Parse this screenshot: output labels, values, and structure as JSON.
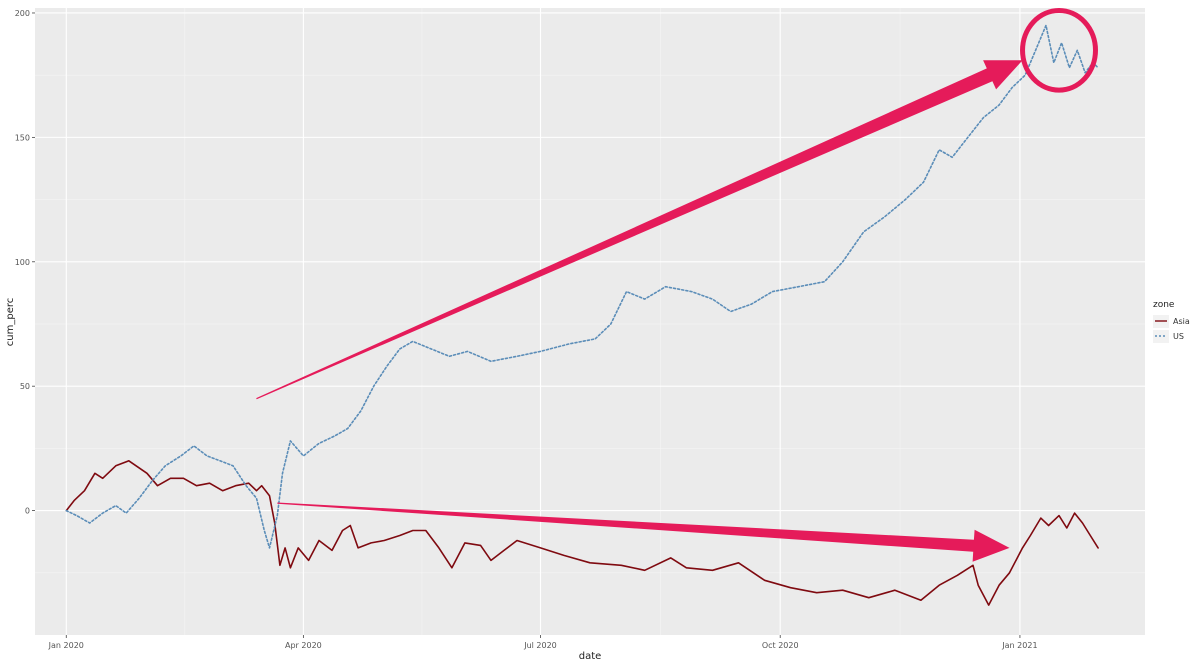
{
  "chart_data": {
    "type": "line",
    "xlabel": "date",
    "ylabel": "cum_perc",
    "legend": {
      "title": "zone",
      "position": "right"
    },
    "x_ticks": [
      {
        "label": "Jan 2020",
        "date": "2020-01-01"
      },
      {
        "label": "Apr 2020",
        "date": "2020-04-01"
      },
      {
        "label": "Jul 2020",
        "date": "2020-07-01"
      },
      {
        "label": "Oct 2020",
        "date": "2020-10-01"
      },
      {
        "label": "Jan 2021",
        "date": "2021-01-01"
      }
    ],
    "y_ticks": [
      0,
      50,
      100,
      150,
      200
    ],
    "xlim": [
      "2019-12-20",
      "2021-02-18"
    ],
    "ylim": [
      -50,
      202
    ],
    "grid": true,
    "series": [
      {
        "name": "Asia",
        "color": "#7f0a10",
        "linestyle": "solid",
        "points": [
          [
            "2020-01-01",
            0
          ],
          [
            "2020-01-04",
            4
          ],
          [
            "2020-01-08",
            8
          ],
          [
            "2020-01-12",
            15
          ],
          [
            "2020-01-15",
            13
          ],
          [
            "2020-01-20",
            18
          ],
          [
            "2020-01-25",
            20
          ],
          [
            "2020-02-01",
            15
          ],
          [
            "2020-02-05",
            10
          ],
          [
            "2020-02-10",
            13
          ],
          [
            "2020-02-15",
            13
          ],
          [
            "2020-02-20",
            10
          ],
          [
            "2020-02-25",
            11
          ],
          [
            "2020-03-01",
            8
          ],
          [
            "2020-03-06",
            10
          ],
          [
            "2020-03-11",
            11
          ],
          [
            "2020-03-14",
            8
          ],
          [
            "2020-03-16",
            10
          ],
          [
            "2020-03-19",
            6
          ],
          [
            "2020-03-21",
            -5
          ],
          [
            "2020-03-23",
            -22
          ],
          [
            "2020-03-25",
            -15
          ],
          [
            "2020-03-27",
            -23
          ],
          [
            "2020-03-30",
            -15
          ],
          [
            "2020-04-03",
            -20
          ],
          [
            "2020-04-07",
            -12
          ],
          [
            "2020-04-12",
            -16
          ],
          [
            "2020-04-16",
            -8
          ],
          [
            "2020-04-19",
            -6
          ],
          [
            "2020-04-22",
            -15
          ],
          [
            "2020-04-27",
            -13
          ],
          [
            "2020-05-02",
            -12
          ],
          [
            "2020-05-08",
            -10
          ],
          [
            "2020-05-13",
            -8
          ],
          [
            "2020-05-18",
            -8
          ],
          [
            "2020-05-23",
            -15
          ],
          [
            "2020-05-28",
            -23
          ],
          [
            "2020-06-02",
            -13
          ],
          [
            "2020-06-08",
            -14
          ],
          [
            "2020-06-12",
            -20
          ],
          [
            "2020-06-17",
            -16
          ],
          [
            "2020-06-22",
            -12
          ],
          [
            "2020-07-01",
            -15
          ],
          [
            "2020-07-10",
            -18
          ],
          [
            "2020-07-20",
            -21
          ],
          [
            "2020-08-01",
            -22
          ],
          [
            "2020-08-10",
            -24
          ],
          [
            "2020-08-20",
            -19
          ],
          [
            "2020-08-26",
            -23
          ],
          [
            "2020-09-05",
            -24
          ],
          [
            "2020-09-15",
            -21
          ],
          [
            "2020-09-25",
            -28
          ],
          [
            "2020-10-05",
            -31
          ],
          [
            "2020-10-15",
            -33
          ],
          [
            "2020-10-25",
            -32
          ],
          [
            "2020-11-04",
            -35
          ],
          [
            "2020-11-14",
            -32
          ],
          [
            "2020-11-24",
            -36
          ],
          [
            "2020-12-01",
            -30
          ],
          [
            "2020-12-08",
            -26
          ],
          [
            "2020-12-14",
            -22
          ],
          [
            "2020-12-16",
            -30
          ],
          [
            "2020-12-20",
            -38
          ],
          [
            "2020-12-24",
            -30
          ],
          [
            "2020-12-28",
            -25
          ],
          [
            "2021-01-02",
            -15
          ],
          [
            "2021-01-05",
            -10
          ],
          [
            "2021-01-09",
            -3
          ],
          [
            "2021-01-12",
            -6
          ],
          [
            "2021-01-16",
            -2
          ],
          [
            "2021-01-19",
            -7
          ],
          [
            "2021-01-22",
            -1
          ],
          [
            "2021-01-25",
            -5
          ],
          [
            "2021-01-28",
            -10
          ],
          [
            "2021-01-31",
            -15
          ]
        ]
      },
      {
        "name": "US",
        "color": "#5b8db8",
        "linestyle": "dotted",
        "points": [
          [
            "2020-01-01",
            0
          ],
          [
            "2020-01-05",
            -2
          ],
          [
            "2020-01-10",
            -5
          ],
          [
            "2020-01-15",
            -1
          ],
          [
            "2020-01-20",
            2
          ],
          [
            "2020-01-24",
            -1
          ],
          [
            "2020-01-29",
            5
          ],
          [
            "2020-02-03",
            12
          ],
          [
            "2020-02-08",
            18
          ],
          [
            "2020-02-14",
            22
          ],
          [
            "2020-02-19",
            26
          ],
          [
            "2020-02-24",
            22
          ],
          [
            "2020-02-29",
            20
          ],
          [
            "2020-03-05",
            18
          ],
          [
            "2020-03-10",
            10
          ],
          [
            "2020-03-14",
            5
          ],
          [
            "2020-03-17",
            -8
          ],
          [
            "2020-03-19",
            -15
          ],
          [
            "2020-03-22",
            -2
          ],
          [
            "2020-03-24",
            15
          ],
          [
            "2020-03-27",
            28
          ],
          [
            "2020-04-01",
            22
          ],
          [
            "2020-04-07",
            27
          ],
          [
            "2020-04-13",
            30
          ],
          [
            "2020-04-18",
            33
          ],
          [
            "2020-04-23",
            40
          ],
          [
            "2020-04-28",
            50
          ],
          [
            "2020-05-03",
            58
          ],
          [
            "2020-05-08",
            65
          ],
          [
            "2020-05-13",
            68
          ],
          [
            "2020-05-20",
            65
          ],
          [
            "2020-05-27",
            62
          ],
          [
            "2020-06-03",
            64
          ],
          [
            "2020-06-12",
            60
          ],
          [
            "2020-06-22",
            62
          ],
          [
            "2020-07-01",
            64
          ],
          [
            "2020-07-12",
            67
          ],
          [
            "2020-07-22",
            69
          ],
          [
            "2020-07-28",
            75
          ],
          [
            "2020-08-03",
            88
          ],
          [
            "2020-08-10",
            85
          ],
          [
            "2020-08-18",
            90
          ],
          [
            "2020-08-28",
            88
          ],
          [
            "2020-09-05",
            85
          ],
          [
            "2020-09-12",
            80
          ],
          [
            "2020-09-20",
            83
          ],
          [
            "2020-09-28",
            88
          ],
          [
            "2020-10-08",
            90
          ],
          [
            "2020-10-18",
            92
          ],
          [
            "2020-10-25",
            100
          ],
          [
            "2020-11-02",
            112
          ],
          [
            "2020-11-10",
            118
          ],
          [
            "2020-11-18",
            125
          ],
          [
            "2020-11-25",
            132
          ],
          [
            "2020-12-01",
            145
          ],
          [
            "2020-12-06",
            142
          ],
          [
            "2020-12-12",
            150
          ],
          [
            "2020-12-18",
            158
          ],
          [
            "2020-12-24",
            163
          ],
          [
            "2020-12-29",
            170
          ],
          [
            "2021-01-03",
            175
          ],
          [
            "2021-01-07",
            185
          ],
          [
            "2021-01-11",
            195
          ],
          [
            "2021-01-14",
            180
          ],
          [
            "2021-01-17",
            188
          ],
          [
            "2021-01-20",
            178
          ],
          [
            "2021-01-23",
            185
          ],
          [
            "2021-01-26",
            176
          ],
          [
            "2021-01-29",
            180
          ],
          [
            "2021-01-31",
            178
          ]
        ]
      }
    ]
  },
  "annotations": {
    "arrow_color": "#e51b5a",
    "upper_arrow": {
      "from": [
        "2020-03-14",
        45
      ],
      "to": [
        "2021-01-02",
        181
      ]
    },
    "lower_arrow": {
      "from": [
        "2020-03-22",
        3
      ],
      "to": [
        "2020-12-28",
        -15
      ]
    },
    "highlight_circle": {
      "center": [
        "2021-01-16",
        185
      ],
      "rx_days": 14,
      "ry_units": 16
    }
  }
}
